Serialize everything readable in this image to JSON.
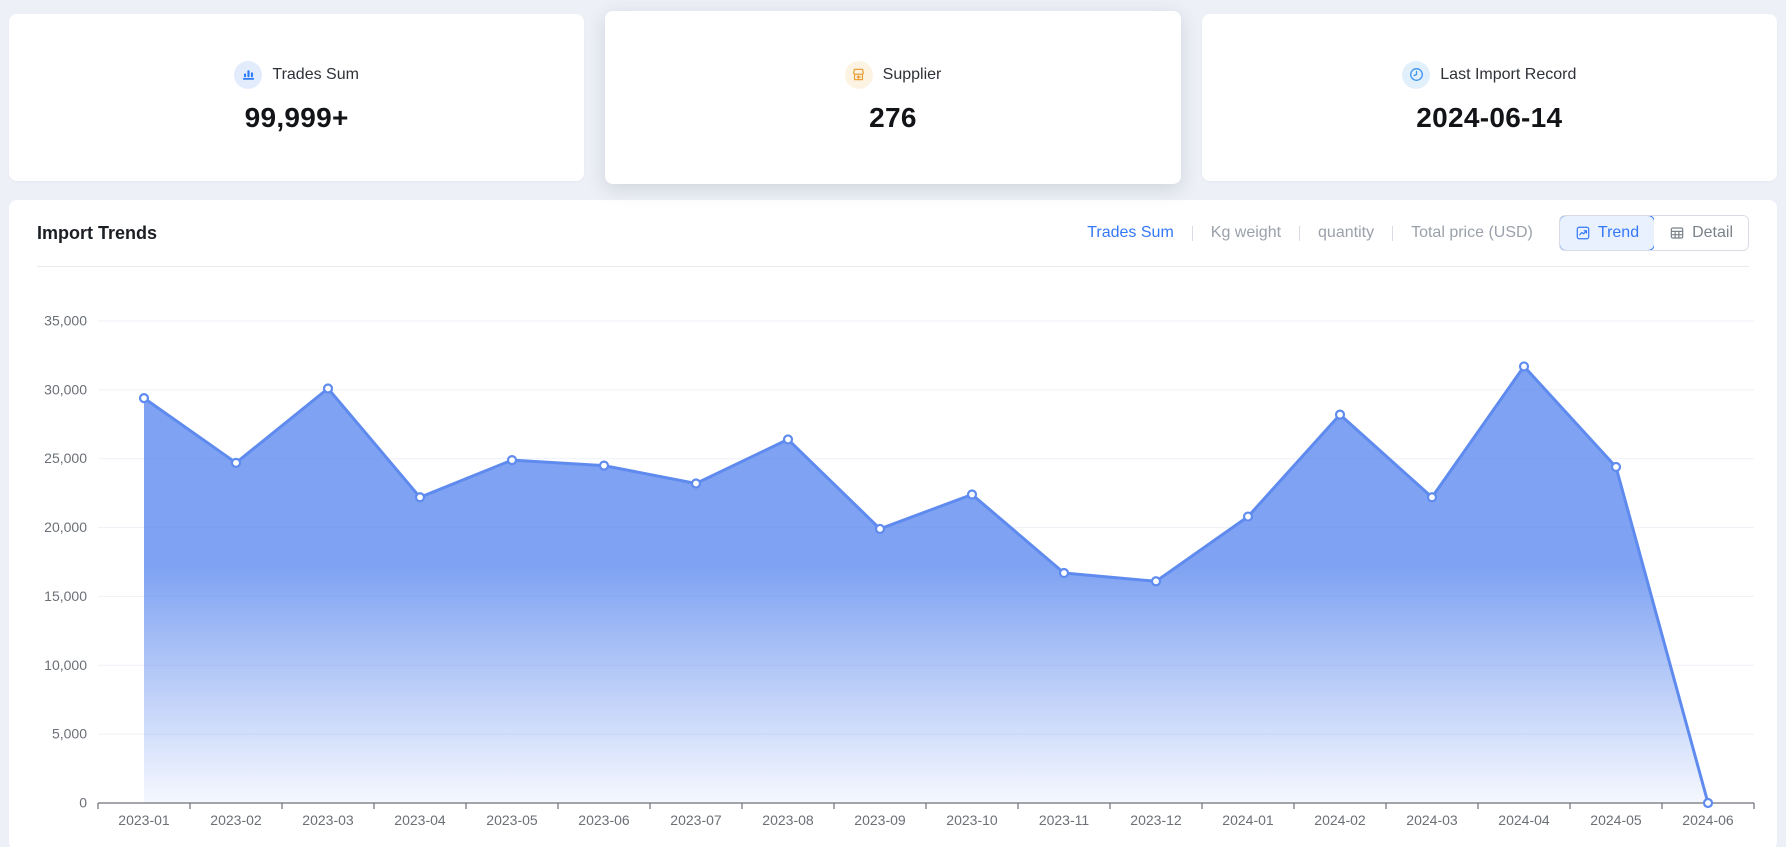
{
  "page": {
    "background": "#edf0f6",
    "accent": "#3478f6"
  },
  "stat_cards": [
    {
      "label": "Trades Sum",
      "value": "99,999+",
      "icon": "bar-chart-icon",
      "icon_color": "#2e7cf6",
      "icon_bg": "#e2ecfd",
      "selected": false
    },
    {
      "label": "Supplier",
      "value": "276",
      "icon": "storefront-icon",
      "icon_color": "#e8a23c",
      "icon_bg": "#fdf3e2",
      "selected": true
    },
    {
      "label": "Last Import Record",
      "value": "2024-06-14",
      "icon": "clock-icon",
      "icon_color": "#3b93f0",
      "icon_bg": "#e2f0fc",
      "selected": false
    }
  ],
  "trends_panel": {
    "title": "Import Trends",
    "metric_tabs": [
      {
        "label": "Trades Sum",
        "active": true
      },
      {
        "label": "Kg weight",
        "active": false
      },
      {
        "label": "quantity",
        "active": false
      },
      {
        "label": "Total price (USD)",
        "active": false
      }
    ],
    "view_toggle": [
      {
        "label": "Trend",
        "icon": "trend-chart-icon",
        "active": true
      },
      {
        "label": "Detail",
        "icon": "table-icon",
        "active": false
      }
    ]
  },
  "chart_data": {
    "type": "area",
    "title": "Import Trends",
    "x": [
      "2023-01",
      "2023-02",
      "2023-03",
      "2023-04",
      "2023-05",
      "2023-06",
      "2023-07",
      "2023-08",
      "2023-09",
      "2023-10",
      "2023-11",
      "2023-12",
      "2024-01",
      "2024-02",
      "2024-03",
      "2024-04",
      "2024-05",
      "2024-06"
    ],
    "series": [
      {
        "name": "Trades Sum",
        "values": [
          29400,
          24700,
          30100,
          22200,
          24900,
          24500,
          23200,
          26400,
          19900,
          22400,
          16700,
          16100,
          20800,
          28200,
          22200,
          31700,
          24400,
          0
        ]
      }
    ],
    "ylim": [
      0,
      35000
    ],
    "y_tick_step": 5000,
    "y_tick_labels": [
      "0",
      "5,000",
      "10,000",
      "15,000",
      "20,000",
      "25,000",
      "30,000",
      "35,000"
    ],
    "xlabel": "",
    "ylabel": "",
    "grid": true,
    "legend_position": "none",
    "line_color": "#5f8bef",
    "area_color": "#5f8bef",
    "axis_color": "#6E7079",
    "grid_color": "#eef1f7",
    "tick_label_color": "#6b7077"
  }
}
